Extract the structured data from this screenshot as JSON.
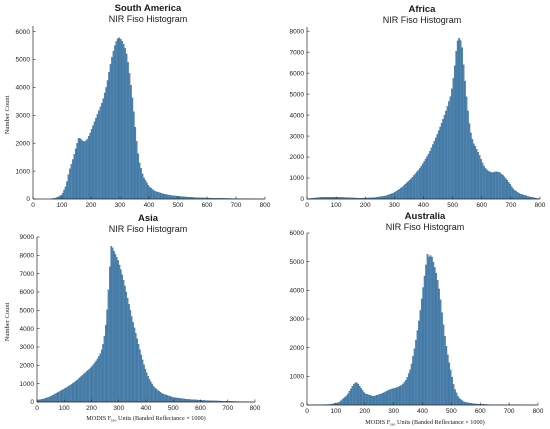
{
  "figure": {
    "bar_color": "#4f87b2",
    "bar_edge": "#2c5d86",
    "axis_color": "#262626"
  },
  "chart_data": [
    {
      "type": "bar",
      "title": "South America",
      "subtitle": "NIR Fiso Histogram",
      "xlabel": "",
      "ylabel": "Number Count",
      "xlim": [
        0,
        800
      ],
      "ylim": [
        0,
        6200
      ],
      "xticks": [
        0,
        100,
        200,
        300,
        400,
        500,
        600,
        700,
        800
      ],
      "yticks": [
        0,
        1000,
        2000,
        3000,
        4000,
        5000,
        6000
      ],
      "bin_width": 5,
      "profile": [
        [
          0,
          0
        ],
        [
          60,
          0
        ],
        [
          80,
          40
        ],
        [
          100,
          150
        ],
        [
          115,
          500
        ],
        [
          125,
          1000
        ],
        [
          140,
          1500
        ],
        [
          150,
          1900
        ],
        [
          158,
          2200
        ],
        [
          165,
          2150
        ],
        [
          175,
          2050
        ],
        [
          185,
          2100
        ],
        [
          195,
          2300
        ],
        [
          210,
          2700
        ],
        [
          225,
          3100
        ],
        [
          240,
          3500
        ],
        [
          255,
          4100
        ],
        [
          265,
          4700
        ],
        [
          275,
          5200
        ],
        [
          285,
          5600
        ],
        [
          295,
          5800
        ],
        [
          305,
          5700
        ],
        [
          315,
          5500
        ],
        [
          325,
          5100
        ],
        [
          335,
          4300
        ],
        [
          345,
          3400
        ],
        [
          355,
          2300
        ],
        [
          365,
          1400
        ],
        [
          380,
          800
        ],
        [
          400,
          450
        ],
        [
          420,
          280
        ],
        [
          450,
          180
        ],
        [
          480,
          120
        ],
        [
          520,
          80
        ],
        [
          560,
          50
        ],
        [
          620,
          30
        ],
        [
          700,
          15
        ],
        [
          800,
          0
        ]
      ]
    },
    {
      "type": "bar",
      "title": "Africa",
      "subtitle": "NIR Fiso Histogram",
      "xlabel": "",
      "ylabel": "",
      "xlim": [
        0,
        800
      ],
      "ylim": [
        0,
        8200
      ],
      "xticks": [
        0,
        100,
        200,
        300,
        400,
        500,
        600,
        700,
        800
      ],
      "yticks": [
        0,
        1000,
        2000,
        3000,
        4000,
        5000,
        6000,
        7000,
        8000
      ],
      "bin_width": 5,
      "profile": [
        [
          0,
          0
        ],
        [
          20,
          40
        ],
        [
          50,
          80
        ],
        [
          90,
          90
        ],
        [
          130,
          70
        ],
        [
          180,
          40
        ],
        [
          230,
          60
        ],
        [
          270,
          150
        ],
        [
          300,
          300
        ],
        [
          330,
          600
        ],
        [
          360,
          1000
        ],
        [
          390,
          1500
        ],
        [
          420,
          2200
        ],
        [
          445,
          3000
        ],
        [
          465,
          3700
        ],
        [
          480,
          4300
        ],
        [
          495,
          5000
        ],
        [
          505,
          6000
        ],
        [
          512,
          7000
        ],
        [
          518,
          7600
        ],
        [
          525,
          7700
        ],
        [
          532,
          7300
        ],
        [
          540,
          6000
        ],
        [
          550,
          4500
        ],
        [
          560,
          3300
        ],
        [
          570,
          2700
        ],
        [
          578,
          2500
        ],
        [
          585,
          2300
        ],
        [
          592,
          2100
        ],
        [
          600,
          1800
        ],
        [
          610,
          1500
        ],
        [
          620,
          1350
        ],
        [
          635,
          1250
        ],
        [
          648,
          1300
        ],
        [
          660,
          1280
        ],
        [
          675,
          1100
        ],
        [
          690,
          850
        ],
        [
          710,
          450
        ],
        [
          730,
          250
        ],
        [
          760,
          120
        ],
        [
          800,
          0
        ]
      ]
    },
    {
      "type": "bar",
      "title": "Asia",
      "subtitle": "NIR Fiso Histogram",
      "xlabel": "MODIS F",
      "xlabel_sub": "iso",
      "xlabel_rest": " Units (Banded Reflectance × 1000)",
      "ylabel": "Number Count",
      "xlim": [
        0,
        800
      ],
      "ylim": [
        0,
        9000
      ],
      "xticks": [
        0,
        100,
        200,
        300,
        400,
        500,
        600,
        700,
        800
      ],
      "yticks": [
        0,
        1000,
        2000,
        3000,
        4000,
        5000,
        6000,
        7000,
        8000,
        9000
      ],
      "bin_width": 5,
      "profile": [
        [
          0,
          100
        ],
        [
          20,
          150
        ],
        [
          50,
          300
        ],
        [
          80,
          550
        ],
        [
          110,
          800
        ],
        [
          140,
          1100
        ],
        [
          170,
          1500
        ],
        [
          200,
          1900
        ],
        [
          220,
          2300
        ],
        [
          235,
          2700
        ],
        [
          245,
          3300
        ],
        [
          255,
          4500
        ],
        [
          262,
          6000
        ],
        [
          268,
          7500
        ],
        [
          272,
          8500
        ],
        [
          278,
          8400
        ],
        [
          286,
          8100
        ],
        [
          296,
          7800
        ],
        [
          308,
          7200
        ],
        [
          320,
          6500
        ],
        [
          335,
          5500
        ],
        [
          350,
          4500
        ],
        [
          365,
          3600
        ],
        [
          380,
          2700
        ],
        [
          395,
          1900
        ],
        [
          410,
          1300
        ],
        [
          430,
          800
        ],
        [
          460,
          450
        ],
        [
          500,
          250
        ],
        [
          550,
          150
        ],
        [
          620,
          80
        ],
        [
          700,
          40
        ],
        [
          800,
          0
        ]
      ]
    },
    {
      "type": "bar",
      "title": "Australia",
      "subtitle": "NIR Fiso Histogram",
      "xlabel": "MODIS F",
      "xlabel_sub": "iso",
      "xlabel_rest": " Units (Banded Reflectance × 1000)",
      "ylabel": "",
      "xlim": [
        0,
        800
      ],
      "ylim": [
        0,
        6000
      ],
      "xticks": [
        0,
        100,
        200,
        300,
        400,
        500,
        600,
        700,
        800
      ],
      "yticks": [
        0,
        1000,
        2000,
        3000,
        4000,
        5000,
        6000
      ],
      "bin_width": 5,
      "profile": [
        [
          0,
          0
        ],
        [
          80,
          20
        ],
        [
          110,
          80
        ],
        [
          140,
          350
        ],
        [
          160,
          700
        ],
        [
          170,
          800
        ],
        [
          180,
          700
        ],
        [
          200,
          400
        ],
        [
          230,
          300
        ],
        [
          260,
          400
        ],
        [
          290,
          550
        ],
        [
          310,
          600
        ],
        [
          330,
          700
        ],
        [
          345,
          900
        ],
        [
          360,
          1300
        ],
        [
          375,
          2100
        ],
        [
          390,
          3100
        ],
        [
          400,
          3900
        ],
        [
          410,
          4700
        ],
        [
          418,
          5300
        ],
        [
          423,
          5150
        ],
        [
          430,
          5250
        ],
        [
          440,
          4900
        ],
        [
          450,
          4500
        ],
        [
          460,
          3900
        ],
        [
          470,
          3000
        ],
        [
          480,
          2200
        ],
        [
          490,
          1600
        ],
        [
          500,
          1100
        ],
        [
          510,
          600
        ],
        [
          525,
          250
        ],
        [
          545,
          100
        ],
        [
          580,
          40
        ],
        [
          640,
          10
        ],
        [
          800,
          0
        ]
      ]
    }
  ]
}
